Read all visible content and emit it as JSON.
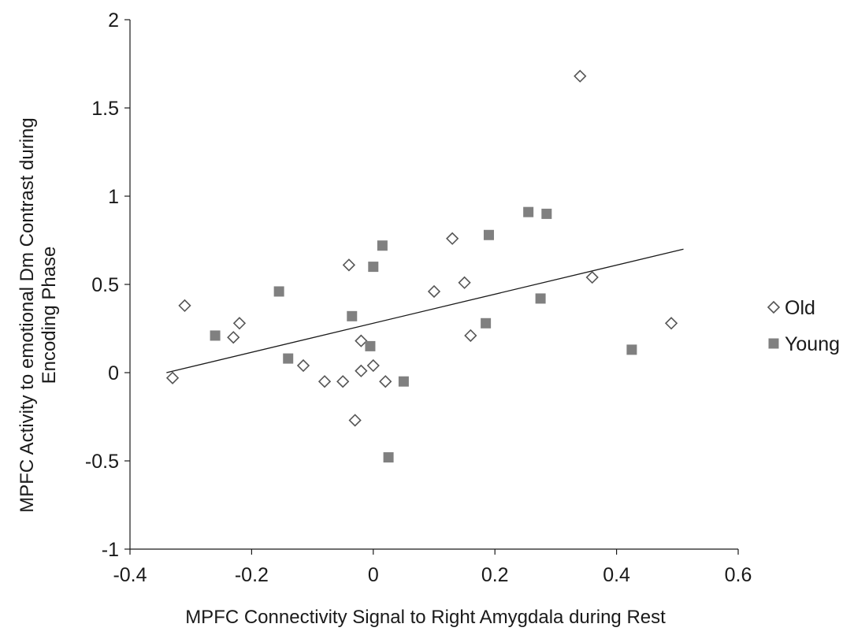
{
  "chart_data": {
    "type": "scatter",
    "title": "",
    "xlabel": "MPFC Connectivity Signal to Right Amygdala during Rest",
    "ylabel_lines": [
      "MPFC Activity to emotional Dm Contrast during",
      "Encoding Phase"
    ],
    "xlim": [
      -0.4,
      0.6
    ],
    "ylim": [
      -1,
      2
    ],
    "x_ticks": [
      -0.4,
      -0.2,
      0,
      0.2,
      0.4,
      0.6
    ],
    "x_tick_labels": [
      "-0.4",
      "-0.2",
      "0",
      "0.2",
      "0.4",
      "0.6"
    ],
    "y_ticks": [
      -1,
      -0.5,
      0,
      0.5,
      1,
      1.5,
      2
    ],
    "y_tick_labels": [
      "-1",
      "-0.5",
      "0",
      "0.5",
      "1",
      "1.5",
      "2"
    ],
    "grid": false,
    "legend_position": "right",
    "series": [
      {
        "name": "Old",
        "marker": "diamond-open",
        "color": "#555555",
        "points": [
          [
            -0.33,
            -0.03
          ],
          [
            -0.31,
            0.38
          ],
          [
            -0.22,
            0.28
          ],
          [
            -0.23,
            0.2
          ],
          [
            -0.115,
            0.04
          ],
          [
            -0.08,
            -0.05
          ],
          [
            -0.05,
            -0.05
          ],
          [
            -0.04,
            0.61
          ],
          [
            -0.03,
            -0.27
          ],
          [
            -0.02,
            0.18
          ],
          [
            -0.02,
            0.01
          ],
          [
            0.0,
            0.04
          ],
          [
            0.02,
            -0.05
          ],
          [
            0.1,
            0.46
          ],
          [
            0.13,
            0.76
          ],
          [
            0.15,
            0.51
          ],
          [
            0.16,
            0.21
          ],
          [
            0.34,
            1.68
          ],
          [
            0.36,
            0.54
          ],
          [
            0.49,
            0.28
          ]
        ]
      },
      {
        "name": "Young",
        "marker": "square-filled",
        "color": "#808080",
        "points": [
          [
            -0.26,
            0.21
          ],
          [
            -0.155,
            0.46
          ],
          [
            -0.14,
            0.08
          ],
          [
            -0.035,
            0.32
          ],
          [
            -0.005,
            0.15
          ],
          [
            -0.0,
            0.6
          ],
          [
            0.015,
            0.72
          ],
          [
            0.025,
            -0.48
          ],
          [
            0.05,
            -0.05
          ],
          [
            0.185,
            0.28
          ],
          [
            0.19,
            0.78
          ],
          [
            0.255,
            0.91
          ],
          [
            0.275,
            0.42
          ],
          [
            0.285,
            0.9
          ],
          [
            0.425,
            0.13
          ]
        ]
      }
    ],
    "trendline": {
      "x": [
        -0.34,
        0.51
      ],
      "y": [
        0.0,
        0.7
      ],
      "color": "#1a1a1a"
    }
  }
}
